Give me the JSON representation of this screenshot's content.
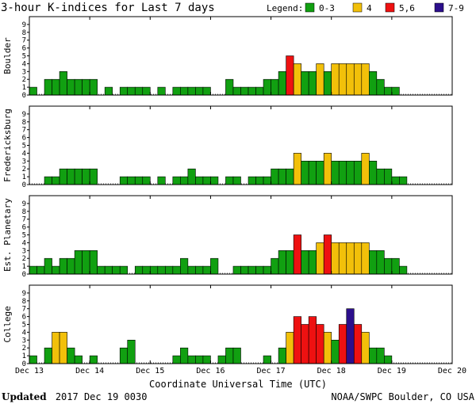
{
  "title": "3-hour K-indices for Last 7 days",
  "legend": {
    "label": "Legend:",
    "items": [
      {
        "label": "0-3",
        "color": "#11a011"
      },
      {
        "label": "4",
        "color": "#f2c00a"
      },
      {
        "label": "5,6",
        "color": "#ee1111"
      },
      {
        "label": "7-9",
        "color": "#2c0f8c"
      }
    ]
  },
  "footer": {
    "updated_label": "Updated",
    "updated_value": "2017 Dec 19 0030",
    "source": "NOAA/SWPC Boulder, CO USA"
  },
  "chart_data": {
    "type": "bar",
    "xlabel": "Coordinate Universal Time (UTC)",
    "ylabel": "",
    "ylim": [
      0,
      9
    ],
    "y_ticks": [
      0,
      1,
      2,
      3,
      4,
      5,
      6,
      7,
      8,
      9
    ],
    "x_ticks": [
      "Dec 13",
      "Dec 14",
      "Dec 15",
      "Dec 16",
      "Dec 17",
      "Dec 18",
      "Dec 19",
      "Dec 20"
    ],
    "series": [
      {
        "name": "Boulder",
        "values": [
          1,
          0,
          2,
          2,
          3,
          2,
          2,
          2,
          2,
          0,
          1,
          0,
          1,
          1,
          1,
          1,
          0,
          1,
          0,
          1,
          1,
          1,
          1,
          1,
          0,
          0,
          2,
          1,
          1,
          1,
          1,
          2,
          2,
          3,
          5,
          4,
          3,
          3,
          4,
          3,
          4,
          4,
          4,
          4,
          4,
          3,
          2,
          1,
          1,
          0,
          0,
          0,
          0,
          0,
          0,
          0
        ]
      },
      {
        "name": "Fredericksburg",
        "values": [
          0,
          0,
          1,
          1,
          2,
          2,
          2,
          2,
          2,
          0,
          0,
          0,
          1,
          1,
          1,
          1,
          0,
          1,
          0,
          1,
          1,
          2,
          1,
          1,
          1,
          0,
          1,
          1,
          0,
          1,
          1,
          1,
          2,
          2,
          2,
          4,
          3,
          3,
          3,
          4,
          3,
          3,
          3,
          3,
          4,
          3,
          2,
          2,
          1,
          1,
          0,
          0,
          0,
          0,
          0,
          0
        ]
      },
      {
        "name": "Est. Planetary",
        "values": [
          1,
          1,
          2,
          1,
          2,
          2,
          3,
          3,
          3,
          1,
          1,
          1,
          1,
          0,
          1,
          1,
          1,
          1,
          1,
          1,
          2,
          1,
          1,
          1,
          2,
          0,
          0,
          1,
          1,
          1,
          1,
          1,
          2,
          3,
          3,
          5,
          3,
          3,
          4,
          5,
          4,
          4,
          4,
          4,
          4,
          3,
          3,
          2,
          2,
          1,
          0,
          0,
          0,
          0,
          0,
          0
        ]
      },
      {
        "name": "College",
        "values": [
          1,
          0,
          2,
          4,
          4,
          2,
          1,
          0,
          1,
          0,
          0,
          0,
          2,
          3,
          0,
          0,
          0,
          0,
          0,
          1,
          2,
          1,
          1,
          1,
          0,
          1,
          2,
          2,
          0,
          0,
          0,
          1,
          0,
          2,
          4,
          6,
          5,
          6,
          5,
          4,
          3,
          5,
          7,
          5,
          4,
          2,
          2,
          1,
          0,
          0,
          0,
          0,
          0,
          0,
          0,
          0
        ]
      }
    ]
  }
}
